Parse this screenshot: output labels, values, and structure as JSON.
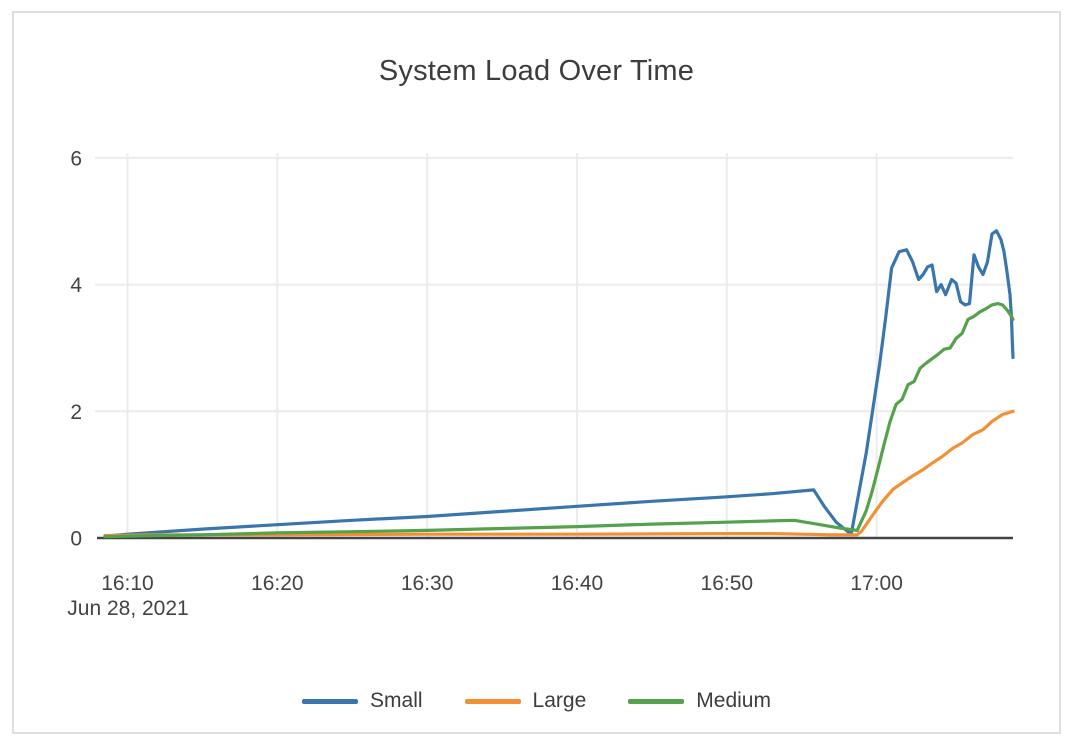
{
  "window": {
    "background": "#ffffff",
    "card_border_color": "#dedede"
  },
  "chart_data": {
    "type": "line",
    "title": "System Load Over Time",
    "x_axis": {
      "date_label": "Jun 28, 2021",
      "range_minutes": [
        8.5,
        69.1
      ],
      "ticks": [
        {
          "minute": 10,
          "label": "16:10"
        },
        {
          "minute": 20,
          "label": "16:20"
        },
        {
          "minute": 30,
          "label": "16:30"
        },
        {
          "minute": 40,
          "label": "16:40"
        },
        {
          "minute": 50,
          "label": "16:50"
        },
        {
          "minute": 60,
          "label": "17:00"
        }
      ],
      "grid": true
    },
    "y_axis": {
      "range": [
        0,
        6.03
      ],
      "ticks": [
        0,
        2,
        4,
        6
      ],
      "grid": true
    },
    "legend_position": "bottom-center",
    "colors": {
      "grid": "#ececec",
      "zero_axis": "#444444",
      "title_text": "#3d3d3d",
      "tick_text": "#444444"
    },
    "series": [
      {
        "name": "Small",
        "color": "#3a76ae",
        "points": [
          [
            8.5,
            0.03
          ],
          [
            10,
            0.06
          ],
          [
            15,
            0.14
          ],
          [
            20,
            0.21
          ],
          [
            25,
            0.28
          ],
          [
            30,
            0.34
          ],
          [
            35,
            0.42
          ],
          [
            40,
            0.5
          ],
          [
            45,
            0.58
          ],
          [
            50,
            0.65
          ],
          [
            53,
            0.7
          ],
          [
            55.8,
            0.76
          ],
          [
            56.5,
            0.5
          ],
          [
            57.3,
            0.25
          ],
          [
            58.3,
            0.06
          ],
          [
            59.3,
            1.34
          ],
          [
            60.2,
            2.74
          ],
          [
            60.6,
            3.47
          ],
          [
            61.0,
            4.26
          ],
          [
            61.5,
            4.52
          ],
          [
            62.0,
            4.55
          ],
          [
            62.4,
            4.36
          ],
          [
            62.8,
            4.08
          ],
          [
            63.1,
            4.16
          ],
          [
            63.4,
            4.28
          ],
          [
            63.7,
            4.31
          ],
          [
            64.0,
            3.89
          ],
          [
            64.3,
            4.0
          ],
          [
            64.6,
            3.84
          ],
          [
            65.0,
            4.08
          ],
          [
            65.3,
            4.02
          ],
          [
            65.6,
            3.73
          ],
          [
            65.9,
            3.68
          ],
          [
            66.2,
            3.7
          ],
          [
            66.5,
            4.47
          ],
          [
            66.8,
            4.28
          ],
          [
            67.1,
            4.16
          ],
          [
            67.4,
            4.36
          ],
          [
            67.7,
            4.8
          ],
          [
            68.0,
            4.85
          ],
          [
            68.3,
            4.71
          ],
          [
            68.5,
            4.52
          ],
          [
            68.7,
            4.2
          ],
          [
            68.9,
            3.84
          ],
          [
            69.0,
            3.47
          ],
          [
            69.05,
            3.1
          ],
          [
            69.1,
            2.85
          ]
        ]
      },
      {
        "name": "Large",
        "color": "#f29036",
        "points": [
          [
            8.5,
            0.04
          ],
          [
            12,
            0.05
          ],
          [
            20,
            0.05
          ],
          [
            30,
            0.06
          ],
          [
            40,
            0.06
          ],
          [
            50,
            0.07
          ],
          [
            53,
            0.07
          ],
          [
            55,
            0.06
          ],
          [
            57,
            0.05
          ],
          [
            58.7,
            0.05
          ],
          [
            59.0,
            0.11
          ],
          [
            59.7,
            0.35
          ],
          [
            60.4,
            0.58
          ],
          [
            61.1,
            0.77
          ],
          [
            61.7,
            0.87
          ],
          [
            62.4,
            0.98
          ],
          [
            63.1,
            1.08
          ],
          [
            63.7,
            1.18
          ],
          [
            64.4,
            1.29
          ],
          [
            65.1,
            1.42
          ],
          [
            65.7,
            1.5
          ],
          [
            66.4,
            1.63
          ],
          [
            67.1,
            1.71
          ],
          [
            67.7,
            1.84
          ],
          [
            68.4,
            1.95
          ],
          [
            69.1,
            2.0
          ]
        ]
      },
      {
        "name": "Medium",
        "color": "#54a24b",
        "points": [
          [
            8.5,
            0.02
          ],
          [
            10,
            0.03
          ],
          [
            15,
            0.05
          ],
          [
            20,
            0.08
          ],
          [
            25,
            0.1
          ],
          [
            30,
            0.12
          ],
          [
            35,
            0.15
          ],
          [
            40,
            0.18
          ],
          [
            45,
            0.22
          ],
          [
            50,
            0.25
          ],
          [
            53,
            0.27
          ],
          [
            54.5,
            0.28
          ],
          [
            56,
            0.22
          ],
          [
            57.5,
            0.16
          ],
          [
            58.7,
            0.12
          ],
          [
            59.3,
            0.43
          ],
          [
            59.7,
            0.74
          ],
          [
            60.1,
            1.1
          ],
          [
            60.5,
            1.48
          ],
          [
            60.9,
            1.84
          ],
          [
            61.3,
            2.11
          ],
          [
            61.7,
            2.19
          ],
          [
            62.1,
            2.42
          ],
          [
            62.5,
            2.47
          ],
          [
            62.9,
            2.68
          ],
          [
            63.3,
            2.76
          ],
          [
            63.7,
            2.83
          ],
          [
            64.1,
            2.9
          ],
          [
            64.5,
            2.98
          ],
          [
            64.9,
            3.0
          ],
          [
            65.3,
            3.15
          ],
          [
            65.7,
            3.23
          ],
          [
            66.1,
            3.45
          ],
          [
            66.5,
            3.5
          ],
          [
            66.9,
            3.57
          ],
          [
            67.3,
            3.62
          ],
          [
            67.7,
            3.68
          ],
          [
            68.1,
            3.7
          ],
          [
            68.4,
            3.68
          ],
          [
            68.7,
            3.6
          ],
          [
            69.0,
            3.5
          ],
          [
            69.1,
            3.45
          ]
        ]
      }
    ]
  }
}
